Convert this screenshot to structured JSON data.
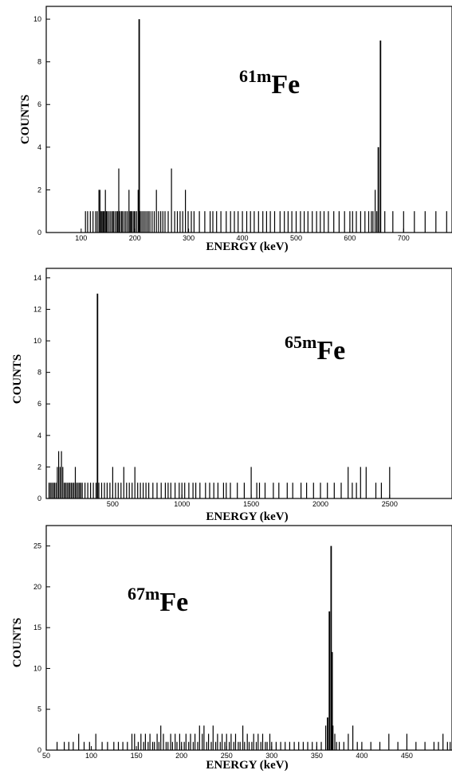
{
  "chart_data": [
    {
      "type": "bar",
      "subtype": "spectrum-histogram",
      "isotope": {
        "mass": "61m",
        "symbol": "Fe"
      },
      "xlabel": "ENERGY (keV)",
      "ylabel": "COUNTS",
      "xlim": [
        35,
        790
      ],
      "ylim": [
        0,
        10.6
      ],
      "xticks": [
        100,
        200,
        300,
        400,
        500,
        600,
        700
      ],
      "yticks": [
        0,
        2,
        4,
        6,
        8,
        10
      ],
      "x": [
        108,
        112,
        117,
        122,
        127,
        130,
        133,
        135,
        137,
        139,
        141,
        143,
        145,
        147,
        149,
        152,
        155,
        158,
        160,
        163,
        166,
        168,
        170,
        172,
        175,
        177,
        180,
        183,
        186,
        189,
        191,
        193,
        195,
        198,
        200,
        203,
        206,
        208,
        210,
        213,
        216,
        219,
        222,
        225,
        228,
        232,
        236,
        240,
        244,
        248,
        252,
        256,
        262,
        268,
        274,
        279,
        284,
        289,
        294,
        299,
        305,
        310,
        320,
        330,
        340,
        345,
        352,
        360,
        370,
        378,
        385,
        392,
        400,
        408,
        415,
        422,
        430,
        438,
        445,
        452,
        460,
        470,
        478,
        485,
        492,
        500,
        508,
        515,
        522,
        530,
        538,
        545,
        552,
        560,
        570,
        580,
        590,
        600,
        605,
        612,
        620,
        628,
        635,
        640,
        643,
        647,
        650,
        653,
        657,
        665,
        680,
        700,
        720,
        740,
        760,
        780
      ],
      "values": [
        1,
        1,
        1,
        1,
        1,
        1,
        2,
        2,
        1,
        1,
        1,
        1,
        2,
        1,
        1,
        1,
        1,
        1,
        1,
        1,
        1,
        1,
        3,
        1,
        1,
        1,
        1,
        1,
        1,
        2,
        1,
        1,
        1,
        1,
        1,
        1,
        2,
        10,
        1,
        1,
        1,
        1,
        1,
        1,
        1,
        1,
        1,
        2,
        1,
        1,
        1,
        1,
        1,
        3,
        1,
        1,
        1,
        1,
        2,
        1,
        1,
        1,
        1,
        1,
        1,
        1,
        1,
        1,
        1,
        1,
        1,
        1,
        1,
        1,
        1,
        1,
        1,
        1,
        1,
        1,
        1,
        1,
        1,
        1,
        1,
        1,
        1,
        1,
        1,
        1,
        1,
        1,
        1,
        1,
        1,
        1,
        1,
        1,
        1,
        1,
        1,
        1,
        1,
        1,
        1,
        2,
        1,
        4,
        9,
        1,
        1,
        1,
        1,
        1,
        1,
        1
      ]
    },
    {
      "type": "bar",
      "subtype": "spectrum-histogram",
      "isotope": {
        "mass": "65m",
        "symbol": "Fe"
      },
      "xlabel": "ENERGY (keV)",
      "ylabel": "COUNTS",
      "xlim": [
        20,
        2950
      ],
      "ylim": [
        0,
        14.6
      ],
      "xticks": [
        500,
        1000,
        1500,
        2000,
        2500
      ],
      "yticks": [
        0,
        2,
        4,
        6,
        8,
        10,
        12,
        14
      ],
      "x": [
        40,
        50,
        60,
        70,
        80,
        90,
        100,
        110,
        120,
        130,
        140,
        150,
        160,
        170,
        180,
        190,
        200,
        210,
        220,
        230,
        240,
        250,
        260,
        270,
        280,
        300,
        320,
        340,
        360,
        380,
        390,
        400,
        420,
        440,
        460,
        480,
        500,
        520,
        540,
        560,
        580,
        600,
        620,
        640,
        660,
        680,
        700,
        720,
        740,
        760,
        790,
        820,
        850,
        880,
        900,
        920,
        950,
        980,
        1000,
        1020,
        1050,
        1080,
        1100,
        1130,
        1170,
        1200,
        1230,
        1260,
        1300,
        1320,
        1350,
        1400,
        1450,
        1500,
        1540,
        1560,
        1600,
        1660,
        1700,
        1760,
        1800,
        1860,
        1900,
        1950,
        2000,
        2050,
        2100,
        2150,
        2200,
        2230,
        2260,
        2290,
        2330,
        2400,
        2440,
        2500
      ],
      "values": [
        1,
        1,
        1,
        1,
        1,
        1,
        2,
        3,
        2,
        3,
        2,
        1,
        1,
        1,
        1,
        1,
        1,
        1,
        1,
        2,
        1,
        1,
        1,
        1,
        1,
        1,
        1,
        1,
        1,
        1,
        13,
        1,
        1,
        1,
        1,
        1,
        2,
        1,
        1,
        1,
        2,
        1,
        1,
        1,
        2,
        1,
        1,
        1,
        1,
        1,
        1,
        1,
        1,
        1,
        1,
        1,
        1,
        1,
        1,
        1,
        1,
        1,
        1,
        1,
        1,
        1,
        1,
        1,
        1,
        1,
        1,
        1,
        1,
        2,
        1,
        1,
        1,
        1,
        1,
        1,
        1,
        1,
        1,
        1,
        1,
        1,
        1,
        1,
        2,
        1,
        1,
        2,
        2,
        1,
        1,
        2
      ]
    },
    {
      "type": "bar",
      "subtype": "spectrum-histogram",
      "isotope": {
        "mass": "67m",
        "symbol": "Fe"
      },
      "xlabel": "ENERGY (keV)",
      "ylabel": "COUNTS",
      "xlim": [
        50,
        500
      ],
      "ylim": [
        0,
        27.5
      ],
      "xticks": [
        50,
        100,
        150,
        200,
        250,
        300,
        350,
        400,
        450
      ],
      "yticks": [
        0,
        5,
        10,
        15,
        20,
        25
      ],
      "x": [
        62,
        70,
        75,
        80,
        86,
        92,
        98,
        105,
        112,
        118,
        125,
        130,
        135,
        140,
        145,
        148,
        152,
        155,
        158,
        160,
        163,
        165,
        168,
        170,
        173,
        175,
        177,
        180,
        183,
        185,
        188,
        190,
        193,
        195,
        198,
        200,
        203,
        205,
        208,
        210,
        213,
        215,
        218,
        220,
        223,
        225,
        228,
        230,
        233,
        235,
        238,
        240,
        243,
        245,
        248,
        250,
        253,
        255,
        258,
        260,
        263,
        265,
        268,
        270,
        273,
        275,
        278,
        280,
        283,
        285,
        288,
        290,
        293,
        295,
        298,
        300,
        305,
        310,
        315,
        320,
        325,
        330,
        335,
        340,
        345,
        350,
        355,
        360,
        362,
        364,
        366,
        367,
        368,
        370,
        372,
        375,
        380,
        385,
        390,
        395,
        400,
        410,
        420,
        430,
        440,
        450,
        460,
        470,
        480,
        485,
        490,
        495,
        498
      ],
      "values": [
        1,
        1,
        1,
        1,
        2,
        1,
        1,
        2,
        1,
        1,
        1,
        1,
        1,
        1,
        2,
        2,
        1,
        2,
        1,
        2,
        1,
        2,
        1,
        1,
        2,
        1,
        3,
        2,
        1,
        1,
        2,
        1,
        2,
        1,
        2,
        1,
        1,
        2,
        1,
        2,
        1,
        2,
        1,
        3,
        2,
        3,
        1,
        2,
        1,
        3,
        1,
        2,
        1,
        2,
        1,
        2,
        1,
        2,
        1,
        2,
        1,
        1,
        3,
        1,
        2,
        1,
        1,
        2,
        1,
        2,
        1,
        2,
        1,
        1,
        2,
        1,
        1,
        1,
        1,
        1,
        1,
        1,
        1,
        1,
        1,
        1,
        1,
        3,
        4,
        17,
        25,
        12,
        3,
        2,
        1,
        1,
        1,
        2,
        3,
        1,
        1,
        1,
        1,
        2,
        1,
        2,
        1,
        1,
        1,
        1,
        2,
        1,
        1
      ]
    }
  ]
}
